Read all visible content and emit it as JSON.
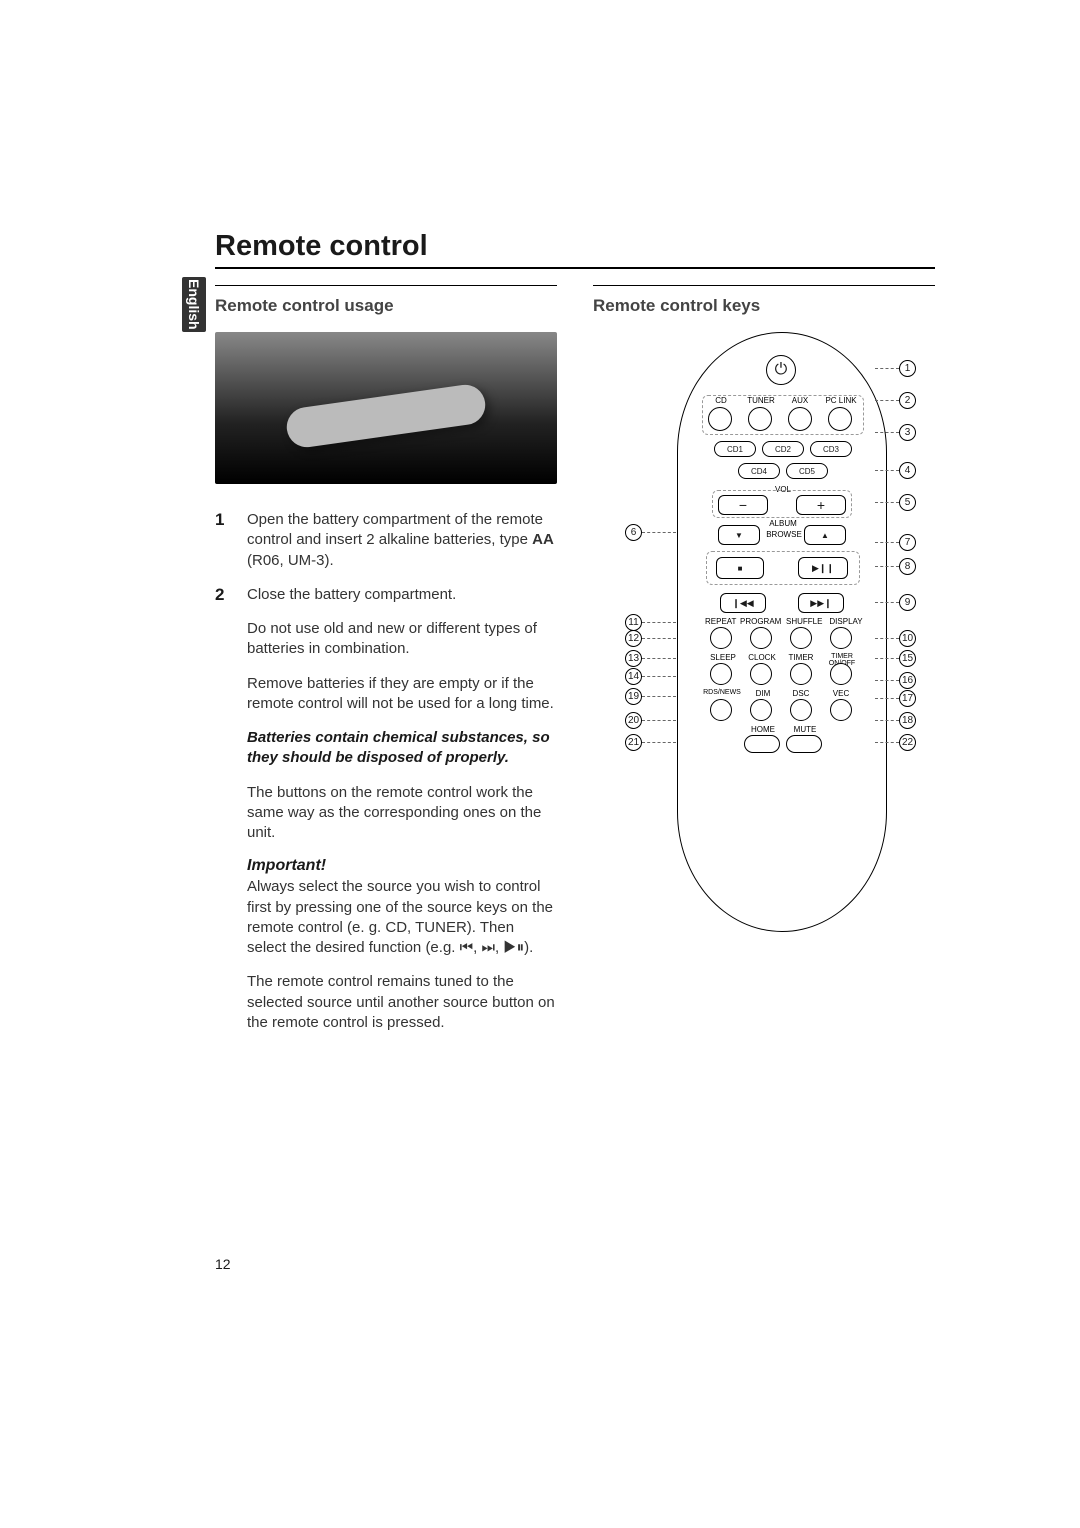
{
  "title": "Remote control",
  "sidebar_lang": "English",
  "section_usage": "Remote control usage",
  "section_keys": "Remote control keys",
  "steps": [
    {
      "n": "1",
      "text_a": "Open the battery compartment of the remote control and insert 2 alkaline batteries, type ",
      "bat": "AA",
      "text_b": " (R06, UM-3)."
    },
    {
      "n": "2",
      "text_a": "Close the battery compartment.",
      "bat": "",
      "text_b": ""
    }
  ],
  "para_oldnew": "Do not use old and new or different types of batteries in combination.",
  "para_remove": "Remove batteries if they are empty or if the remote control will not be used for a long time.",
  "warn": "Batteries contain chemical substances, so they should be disposed of properly.",
  "para_same": "The buttons on the remote control work the same way as the corresponding ones on the unit.",
  "important_h": "Important!",
  "para_important": "Always select the source you wish to control first by pressing one of the source keys on the remote control (e. g. CD, TUNER). Then select the desired function (e.g. ⏮, ⏭, ▶⏸).",
  "para_tuned": "The remote control remains tuned to the selected source until another source button on the remote control is pressed.",
  "page_number": "12",
  "remote": {
    "sources": [
      "CD",
      "TUNER",
      "AUX",
      "PC LINK"
    ],
    "cdslots": [
      "CD1",
      "CD2",
      "CD3",
      "CD4",
      "CD5"
    ],
    "vol_label": "VOL",
    "album_label": "ALBUM",
    "browse_label": "BROWSE",
    "row_repeat": [
      "REPEAT",
      "PROGRAM",
      "SHUFFLE",
      "DISPLAY"
    ],
    "row_sleep": [
      "SLEEP",
      "CLOCK",
      "TIMER",
      "TIMER ON/OFF"
    ],
    "row_rds": [
      "RDS/NEWS",
      "DIM",
      "DSC",
      "VEC"
    ],
    "row_home": [
      "HOME",
      "MUTE"
    ],
    "glyphs": {
      "power": "⏻",
      "minus": "−",
      "plus": "+",
      "down": "▼",
      "up": "▲",
      "stop": "■",
      "play": "▶❙❙",
      "prev": "❙◀◀",
      "next": "▶▶❙"
    },
    "callouts_right_count": 12,
    "callouts_left_count": 8
  },
  "style": {
    "title_fontsize": 29,
    "section_fontsize": 17,
    "body_fontsize": 15,
    "diagram_label_fontsize": 8,
    "callout_fontsize": 11,
    "text_color": "#333333",
    "rule_color": "#000000",
    "dash_color": "#999999",
    "background": "#ffffff"
  }
}
